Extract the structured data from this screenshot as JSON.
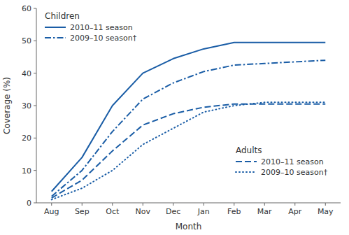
{
  "chart_data": {
    "type": "line",
    "xlabel": "Month",
    "ylabel": "Coverage (%)",
    "categories": [
      "Aug",
      "Sep",
      "Oct",
      "Nov",
      "Dec",
      "Jan",
      "Feb",
      "Mar",
      "Apr",
      "May"
    ],
    "color": "#1a5da6",
    "series": [
      {
        "name": "2010–11 season",
        "group": "Children",
        "line_style": "solid",
        "values": [
          3.5,
          14.0,
          30.0,
          40.0,
          44.5,
          47.5,
          49.5,
          49.5,
          49.5,
          49.5
        ]
      },
      {
        "name": "2009–10 season†",
        "group": "Children",
        "line_style": "dashdot",
        "values": [
          2.0,
          10.0,
          22.0,
          32.0,
          37.0,
          40.5,
          42.5,
          43.0,
          43.5,
          44.0
        ]
      },
      {
        "name": "2010–11 season",
        "group": "Adults",
        "line_style": "dashed",
        "values": [
          1.5,
          7.0,
          16.0,
          24.0,
          27.5,
          29.5,
          30.5,
          30.5,
          30.5,
          30.5
        ]
      },
      {
        "name": "2009–10 season†",
        "group": "Adults",
        "line_style": "dotted",
        "values": [
          1.0,
          4.5,
          10.0,
          18.0,
          23.0,
          28.0,
          30.0,
          31.0,
          31.0,
          31.0
        ]
      }
    ],
    "ylim": [
      0,
      60
    ],
    "yticks": [
      0,
      10,
      20,
      30,
      40,
      50,
      60
    ],
    "grid": false
  }
}
